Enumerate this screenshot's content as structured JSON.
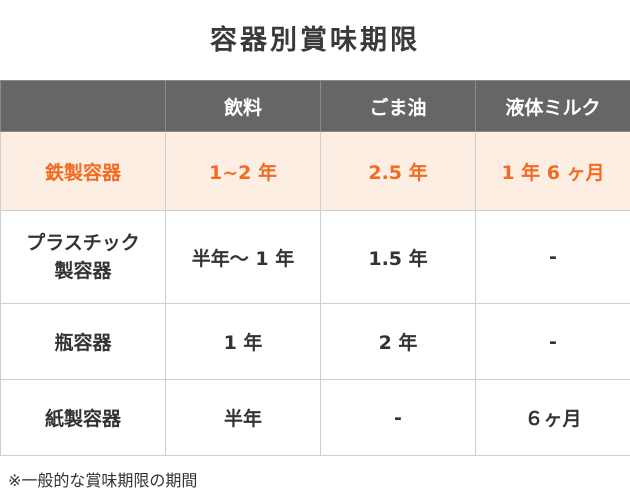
{
  "title": "容器別賞味期限",
  "table": {
    "headers": [
      "",
      "飲料",
      "ごま油",
      "液体ミルク"
    ],
    "rows": [
      {
        "label": "鉄製容器",
        "cells": [
          "1~2 年",
          "2.5 年",
          "1 年 6 ヶ月"
        ]
      },
      {
        "label": "プラスチック\n製容器",
        "cells": [
          "半年〜 1 年",
          "1.5 年",
          "-"
        ]
      },
      {
        "label": "瓶容器",
        "cells": [
          "1 年",
          "2 年",
          "-"
        ]
      },
      {
        "label": "紙製容器",
        "cells": [
          "半年",
          "-",
          "６ヶ月"
        ]
      }
    ]
  },
  "footnote": "※一般的な賞味期限の期間",
  "colors": {
    "header_bg": "#666666",
    "highlight_bg": "#fdeee3",
    "highlight_text": "#f26b21"
  }
}
